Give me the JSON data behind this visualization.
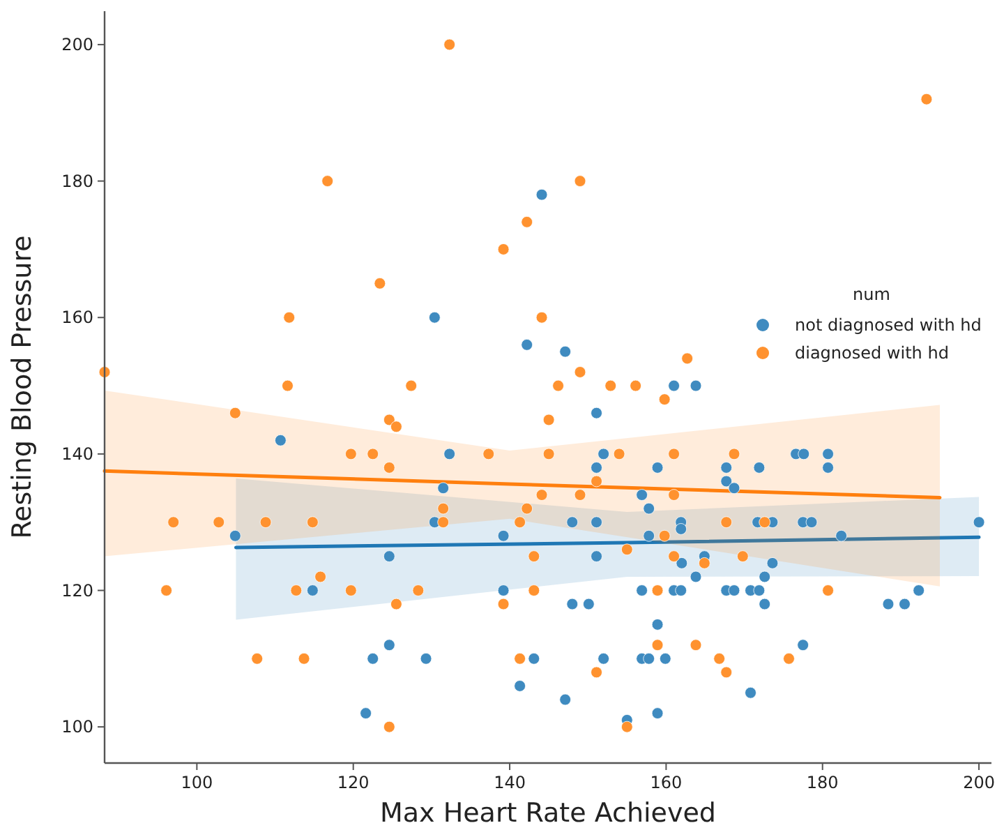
{
  "chart_data": {
    "type": "scatter",
    "xlabel": "Max Heart Rate Achieved",
    "ylabel": "Resting Blood Pressure",
    "legend_title": "num",
    "legend": "right",
    "grid": false,
    "xlim": [
      88.2,
      201.6
    ],
    "ylim": [
      94.7,
      204.9
    ],
    "xticks": [
      100,
      120,
      140,
      160,
      180,
      200
    ],
    "yticks": [
      100,
      120,
      140,
      160,
      180,
      200
    ],
    "series": [
      {
        "marker": "circle",
        "name": "not diagnosed with hd",
        "color": "#3f8bc0",
        "x": [
          144.1,
          130.4,
          142.2,
          147.1,
          161,
          163.8,
          151.1,
          110.7,
          132.3,
          131.5,
          130.4,
          104.9,
          124.6,
          114.8,
          139.2,
          139.2,
          124.6,
          122.5,
          129.3,
          143.1,
          141.3,
          121.6,
          152,
          151.1,
          158.9,
          167.7,
          171.9,
          167.7,
          168.7,
          176.6,
          177.6,
          180.7,
          180.7,
          156.9,
          157.8,
          148,
          151.1,
          161.9,
          161.9,
          171.7,
          173.6,
          177.5,
          178.6,
          200,
          182.4,
          157.8,
          151.1,
          164.9,
          162,
          173.6,
          163.8,
          172.6,
          156.9,
          161,
          161.9,
          167.7,
          168.7,
          170.8,
          171.9,
          192.3,
          148,
          150.1,
          172.6,
          188.4,
          190.5,
          158.9,
          177.5,
          152,
          156.9,
          157.8,
          159.9,
          147.1,
          170.8,
          155,
          158.9
        ],
        "values": [
          178,
          160,
          156,
          155,
          150,
          150,
          146,
          142,
          140,
          135,
          130,
          128,
          125,
          120,
          128,
          120,
          112,
          110,
          110,
          110,
          106,
          102,
          140,
          138,
          138,
          138,
          138,
          136,
          135,
          140,
          140,
          140,
          138,
          134,
          132,
          130,
          130,
          130,
          129,
          130,
          130,
          130,
          130,
          130,
          128,
          128,
          125,
          125,
          124,
          124,
          122,
          122,
          120,
          120,
          120,
          120,
          120,
          120,
          120,
          120,
          118,
          118,
          118,
          118,
          118,
          115,
          112,
          110,
          110,
          110,
          110,
          104,
          105,
          101,
          102
        ]
      },
      {
        "marker": "circle",
        "name": "diagnosed with hd",
        "color": "#ff922f",
        "x": [
          88.2,
          96.1,
          97,
          102.8,
          108.8,
          114.8,
          104.9,
          107.7,
          113.7,
          112.7,
          115.8,
          119.7,
          119.7,
          122.5,
          124.6,
          124.6,
          125.5,
          125.5,
          128.3,
          131.5,
          131.5,
          124.6,
          137.3,
          141.3,
          142.2,
          144.1,
          143.1,
          143.1,
          139.2,
          141.3,
          145,
          145,
          111.6,
          127.4,
          132.3,
          116.7,
          139.2,
          142.2,
          123.4,
          111.8,
          144.1,
          193.3,
          149,
          149,
          146.2,
          152.9,
          156.1,
          162.7,
          159.8,
          154,
          161,
          168.7,
          151.1,
          149,
          161,
          167.7,
          172.6,
          159.8,
          155,
          161,
          164.9,
          169.8,
          158.9,
          180.7,
          158.9,
          163.8,
          151.1,
          166.8,
          167.7,
          175.7,
          155
        ],
        "values": [
          152,
          120,
          130,
          130,
          130,
          130,
          146,
          110,
          110,
          120,
          122,
          120,
          140,
          140,
          138,
          145,
          144,
          118,
          120,
          132,
          130,
          100,
          140,
          130,
          132,
          134,
          125,
          120,
          118,
          110,
          145,
          140,
          150,
          150,
          200,
          180,
          170,
          174,
          165,
          160,
          160,
          192,
          180,
          152,
          150,
          150,
          150,
          154,
          148,
          140,
          140,
          140,
          136,
          134,
          134,
          130,
          130,
          128,
          126,
          125,
          124,
          125,
          120,
          120,
          112,
          112,
          108,
          110,
          108,
          110,
          100
        ]
      },
      {
        "type": "line",
        "color": "#1f77b4",
        "x": [
          105,
          155,
          200
        ],
        "values": [
          126.3,
          127,
          127.8
        ],
        "lower": [
          115.7,
          122,
          122.1
        ],
        "upper": [
          136.4,
          131.5,
          133.7
        ]
      },
      {
        "type": "line",
        "color": "#ff7f0e",
        "x": [
          88.2,
          140,
          195
        ],
        "values": [
          137.5,
          135.6,
          133.6
        ],
        "lower": [
          125,
          130.5,
          120.6
        ],
        "upper": [
          149.3,
          140.5,
          147.2
        ]
      }
    ]
  }
}
